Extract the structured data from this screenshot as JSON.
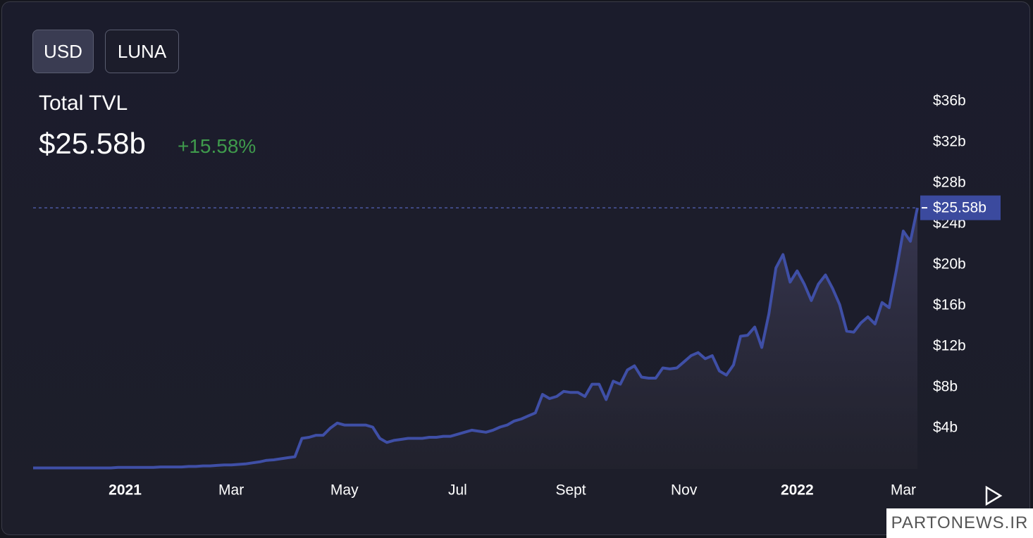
{
  "buttons": [
    "USD",
    "LUNA"
  ],
  "chart_data": {
    "type": "line",
    "title": "Total TVL",
    "current": {
      "value": 25.58,
      "label": "$25.58b"
    },
    "change": "+15.58%",
    "color": "#3f4fa6",
    "categories": [
      null,
      null,
      null,
      null,
      null,
      null,
      null,
      null,
      null,
      null,
      null,
      null,
      null,
      "2021",
      null,
      null,
      null,
      null,
      null,
      null,
      null,
      null,
      null,
      null,
      null,
      null,
      null,
      null,
      "Mar",
      null,
      null,
      null,
      null,
      null,
      null,
      null,
      null,
      null,
      null,
      null,
      null,
      null,
      null,
      null,
      "May",
      null,
      null,
      null,
      null,
      null,
      null,
      null,
      null,
      null,
      null,
      null,
      null,
      null,
      null,
      null,
      "Jul",
      null,
      null,
      null,
      null,
      null,
      null,
      null,
      null,
      null,
      null,
      null,
      null,
      null,
      null,
      null,
      "Sept",
      null,
      null,
      null,
      null,
      null,
      null,
      null,
      null,
      null,
      null,
      null,
      null,
      null,
      null,
      null,
      "Nov",
      null,
      null,
      null,
      null,
      null,
      null,
      null,
      null,
      null,
      null,
      null,
      null,
      null,
      null,
      null,
      "2022",
      null,
      null,
      null,
      null,
      null,
      null,
      null,
      null,
      null,
      null,
      null,
      null,
      null,
      null,
      "Mar",
      null,
      null
    ],
    "values": [
      0.1,
      0.1,
      0.1,
      0.1,
      0.1,
      0.1,
      0.1,
      0.1,
      0.1,
      0.1,
      0.1,
      0.1,
      0.15,
      0.15,
      0.15,
      0.15,
      0.15,
      0.15,
      0.2,
      0.2,
      0.2,
      0.2,
      0.25,
      0.25,
      0.3,
      0.3,
      0.35,
      0.4,
      0.4,
      0.45,
      0.5,
      0.6,
      0.7,
      0.85,
      0.9,
      1.0,
      1.1,
      1.2,
      3.0,
      3.1,
      3.3,
      3.3,
      4.0,
      4.5,
      4.3,
      4.3,
      4.3,
      4.3,
      4.1,
      3.0,
      2.6,
      2.8,
      2.9,
      3.0,
      3.0,
      3.0,
      3.1,
      3.1,
      3.2,
      3.2,
      3.4,
      3.6,
      3.8,
      3.7,
      3.6,
      3.8,
      4.1,
      4.3,
      4.7,
      4.9,
      5.2,
      5.5,
      7.3,
      6.9,
      7.1,
      7.6,
      7.5,
      7.5,
      7.1,
      8.3,
      8.3,
      6.8,
      8.6,
      8.3,
      9.7,
      10.1,
      9.0,
      8.9,
      8.9,
      9.9,
      9.8,
      9.9,
      10.5,
      11.1,
      11.4,
      10.8,
      11.1,
      9.6,
      9.2,
      10.2,
      13.0,
      13.1,
      13.9,
      11.9,
      15.2,
      19.7,
      21.0,
      18.3,
      19.4,
      18.1,
      16.5,
      18.1,
      19.0,
      17.7,
      16.1,
      13.5,
      13.4,
      14.3,
      14.9,
      14.2,
      16.3,
      15.8,
      19.4,
      23.3,
      22.3,
      25.58
    ],
    "ylim": [
      0,
      37
    ],
    "yticks": [
      {
        "value": 4,
        "label": "$4b"
      },
      {
        "value": 8,
        "label": "$8b"
      },
      {
        "value": 12,
        "label": "$12b"
      },
      {
        "value": 16,
        "label": "$16b"
      },
      {
        "value": 20,
        "label": "$20b"
      },
      {
        "value": 24,
        "label": "$24b"
      },
      {
        "value": 28,
        "label": "$28b"
      },
      {
        "value": 32,
        "label": "$32b"
      },
      {
        "value": 36,
        "label": "$36b"
      }
    ],
    "grid": false
  },
  "watermark": "PARTONEWS.IR"
}
